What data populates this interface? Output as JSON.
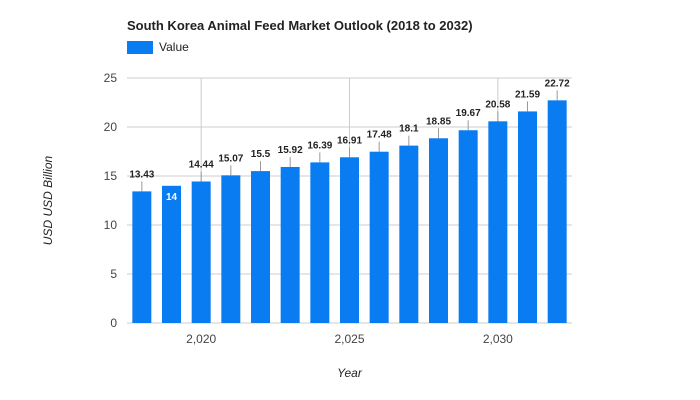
{
  "chart_data": {
    "type": "bar",
    "title": "South Korea Animal Feed Market Outlook (2018 to 2032)",
    "xlabel": "Year",
    "ylabel": "USD USD Billion",
    "x": [
      2018,
      2019,
      2020,
      2021,
      2022,
      2023,
      2024,
      2025,
      2026,
      2027,
      2028,
      2029,
      2030,
      2031,
      2032
    ],
    "series": [
      {
        "name": "Value",
        "color": "#0a7cf2",
        "values": [
          13.43,
          14,
          14.44,
          15.07,
          15.5,
          15.92,
          16.39,
          16.91,
          17.48,
          18.1,
          18.85,
          19.67,
          20.58,
          21.59,
          22.72
        ],
        "labels": [
          "13.43",
          "14",
          "14.44",
          "15.07",
          "15.5",
          "15.92",
          "16.39",
          "16.91",
          "17.48",
          "18.1",
          "18.85",
          "19.67",
          "20.58",
          "21.59",
          "22.72"
        ]
      }
    ],
    "ylim": [
      0,
      25
    ],
    "yticks": [
      0,
      5,
      10,
      15,
      20,
      25
    ],
    "xticks": [
      2020,
      2025,
      2030
    ],
    "xtick_labels": [
      "2,020",
      "2,025",
      "2,030"
    ],
    "grid": true,
    "legend": "top-left"
  }
}
